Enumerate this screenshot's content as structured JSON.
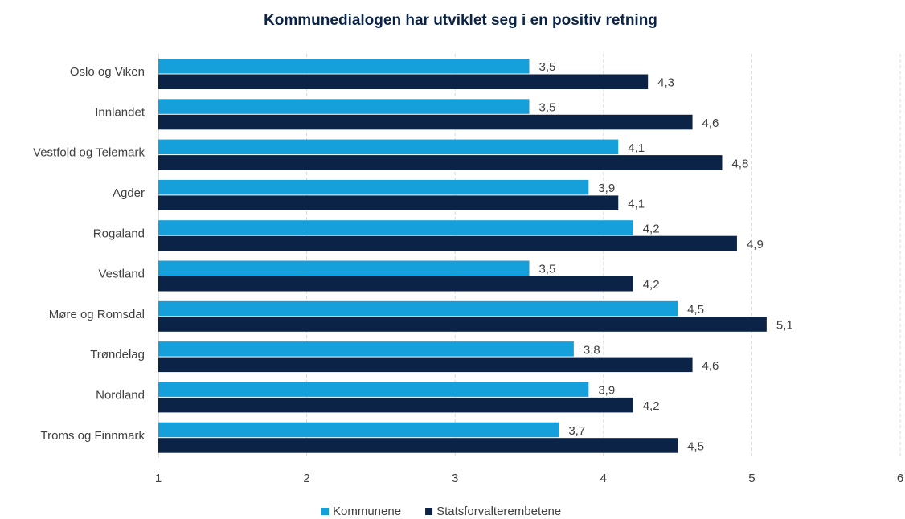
{
  "chart_data": {
    "type": "hbar",
    "title": "Kommunedialogen har utviklet seg i en positiv retning",
    "categories": [
      "Oslo og Viken",
      "Innlandet",
      "Vestfold og Telemark",
      "Agder",
      "Rogaland",
      "Vestland",
      "Møre og Romsdal",
      "Trøndelag",
      "Nordland",
      "Troms og Finnmark"
    ],
    "series": [
      {
        "name": "Kommunene",
        "color": "#15a0dc",
        "values": [
          3.5,
          3.5,
          4.1,
          3.9,
          4.2,
          3.5,
          4.5,
          3.8,
          3.9,
          3.7
        ],
        "value_labels": [
          "3,5",
          "3,5",
          "4,1",
          "3,9",
          "4,2",
          "3,5",
          "4,5",
          "3,8",
          "3,9",
          "3,7"
        ]
      },
      {
        "name": "Statsforvalterembetene",
        "color": "#0b2347",
        "values": [
          4.3,
          4.6,
          4.8,
          4.1,
          4.9,
          4.2,
          5.1,
          4.6,
          4.2,
          4.5
        ],
        "value_labels": [
          "4,3",
          "4,6",
          "4,8",
          "4,1",
          "4,9",
          "4,2",
          "5,1",
          "4,6",
          "4,2",
          "4,5"
        ]
      }
    ],
    "xlim": [
      1,
      6
    ],
    "xticks": [
      1,
      2,
      3,
      4,
      5,
      6
    ],
    "grid": true,
    "legend": "bottom"
  }
}
